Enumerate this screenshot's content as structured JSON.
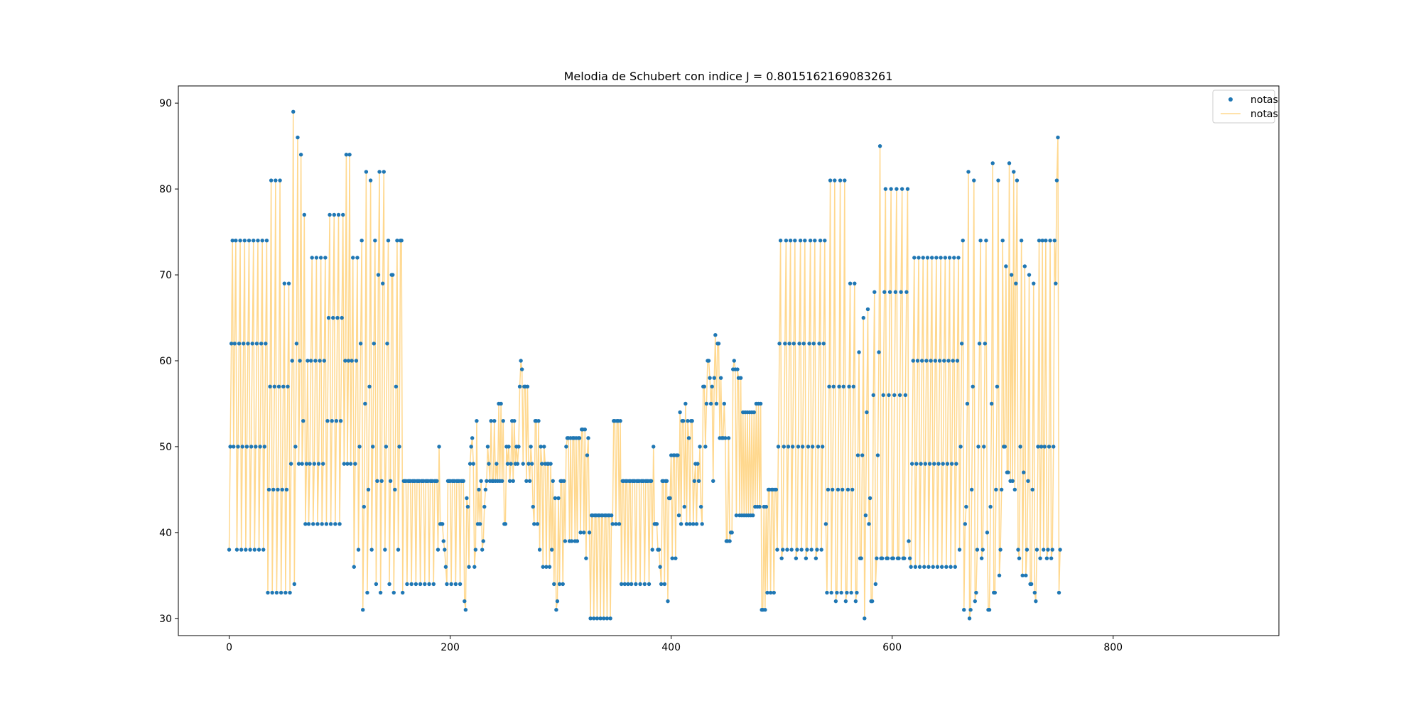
{
  "chart_data": {
    "type": "line",
    "title": "Melodia de Schubert con indice J = 0.8015162169083261",
    "xlabel": "",
    "ylabel": "",
    "xlim": [
      -46,
      950
    ],
    "ylim": [
      28,
      92
    ],
    "xticks": [
      0,
      200,
      400,
      600,
      800
    ],
    "yticks": [
      30,
      40,
      50,
      60,
      70,
      80,
      90
    ],
    "grid": false,
    "legend_position": "top-right",
    "series": [
      {
        "name": "notas",
        "style": "markers",
        "color": "#1f77b4"
      },
      {
        "name": "notas",
        "style": "line",
        "color": "#ffd88e"
      }
    ],
    "notes": [
      38,
      50,
      62,
      74,
      50,
      62,
      74,
      38,
      50,
      62,
      74,
      38,
      50,
      62,
      74,
      38,
      50,
      62,
      74,
      38,
      50,
      62,
      74,
      38,
      50,
      62,
      74,
      38,
      50,
      62,
      74,
      38,
      50,
      62,
      74,
      33,
      45,
      57,
      81,
      33,
      45,
      57,
      81,
      33,
      45,
      57,
      81,
      33,
      45,
      57,
      69,
      33,
      45,
      57,
      69,
      33,
      48,
      60,
      89,
      34,
      50,
      62,
      86,
      48,
      60,
      84,
      48,
      53,
      77,
      41,
      48,
      60,
      41,
      48,
      60,
      72,
      41,
      48,
      60,
      72,
      41,
      48,
      60,
      72,
      41,
      48,
      60,
      72,
      41,
      53,
      65,
      77,
      41,
      53,
      65,
      77,
      41,
      53,
      65,
      77,
      41,
      53,
      65,
      77,
      48,
      60,
      84,
      48,
      60,
      84,
      48,
      60,
      72,
      36,
      48,
      60,
      72,
      38,
      50,
      62,
      74,
      31,
      43,
      55,
      82,
      33,
      45,
      57,
      81,
      38,
      50,
      62,
      74,
      34,
      46,
      70,
      82,
      33,
      46,
      69,
      82,
      38,
      50,
      62,
      74,
      34,
      46,
      70,
      70,
      33,
      45,
      57,
      74,
      38,
      50,
      74,
      74,
      33,
      46,
      46,
      46,
      34,
      46,
      46,
      46,
      34,
      46,
      46,
      46,
      34,
      46,
      46,
      46,
      34,
      46,
      46,
      46,
      34,
      46,
      46,
      46,
      34,
      46,
      46,
      46,
      34,
      46,
      46,
      46,
      38,
      50,
      41,
      41,
      41,
      39,
      38,
      36,
      34,
      46,
      46,
      46,
      34,
      46,
      46,
      46,
      34,
      46,
      46,
      46,
      34,
      46,
      46,
      46,
      32,
      31,
      44,
      43,
      36,
      48,
      50,
      51,
      48,
      36,
      38,
      53,
      41,
      45,
      41,
      46,
      38,
      39,
      43,
      45,
      46,
      50,
      48,
      46,
      53,
      46,
      46,
      53,
      46,
      48,
      46,
      55,
      46,
      55,
      46,
      53,
      41,
      41,
      50,
      48,
      50,
      46,
      48,
      53,
      46,
      53,
      48,
      50,
      48,
      50,
      57,
      60,
      59,
      48,
      57,
      57,
      46,
      57,
      48,
      46,
      50,
      48,
      43,
      41,
      53,
      53,
      41,
      53,
      38,
      50,
      48,
      36,
      50,
      48,
      36,
      48,
      48,
      36,
      48,
      38,
      46,
      34,
      44,
      31,
      32,
      44,
      34,
      46,
      46,
      34,
      46,
      39,
      50,
      51,
      51,
      39,
      51,
      39,
      51,
      51,
      39,
      51,
      39,
      51,
      51,
      40,
      52,
      52,
      40,
      52,
      37,
      49,
      51,
      40,
      30,
      42,
      42,
      30,
      42,
      42,
      30,
      42,
      42,
      30,
      42,
      42,
      30,
      42,
      42,
      30,
      42,
      42,
      30,
      42,
      41,
      53,
      53,
      41,
      53,
      53,
      41,
      53,
      34,
      46,
      46,
      34,
      46,
      46,
      34,
      46,
      46,
      34,
      46,
      46,
      46,
      34,
      46,
      46,
      46,
      34,
      46,
      46,
      46,
      34,
      46,
      46,
      46,
      34,
      46,
      46,
      38,
      50,
      41,
      41,
      41,
      38,
      38,
      36,
      34,
      46,
      46,
      34,
      46,
      46,
      32,
      44,
      44,
      49,
      37,
      49,
      49,
      37,
      49,
      49,
      42,
      54,
      41,
      53,
      53,
      43,
      55,
      41,
      53,
      51,
      41,
      53,
      53,
      41,
      46,
      48,
      41,
      48,
      46,
      50,
      43,
      41,
      57,
      57,
      50,
      55,
      60,
      60,
      58,
      55,
      57,
      46,
      58,
      63,
      55,
      62,
      62,
      51,
      58,
      51,
      51,
      55,
      51,
      39,
      39,
      51,
      39,
      40,
      40,
      59,
      60,
      59,
      42,
      59,
      58,
      42,
      58,
      42,
      54,
      42,
      54,
      42,
      54,
      42,
      54,
      42,
      54,
      42,
      54,
      43,
      55,
      43,
      55,
      43,
      55,
      31,
      31,
      43,
      31,
      43,
      33,
      45,
      45,
      33,
      45,
      45,
      33,
      45,
      45,
      38,
      50,
      62,
      74,
      37,
      38,
      50,
      62,
      74,
      38,
      50,
      62,
      74,
      38,
      50,
      62,
      74,
      37,
      38,
      50,
      62,
      74,
      38,
      50,
      62,
      74,
      37,
      38,
      50,
      62,
      74,
      38,
      50,
      62,
      74,
      37,
      38,
      50,
      62,
      74,
      38,
      50,
      62,
      74,
      41,
      33,
      45,
      57,
      81,
      33,
      45,
      57,
      81,
      32,
      33,
      45,
      57,
      81,
      33,
      45,
      57,
      81,
      32,
      33,
      45,
      57,
      69,
      33,
      45,
      57,
      69,
      32,
      33,
      49,
      61,
      37,
      37,
      49,
      65,
      30,
      42,
      54,
      66,
      41,
      44,
      32,
      32,
      56,
      68,
      34,
      37,
      49,
      61,
      85,
      37,
      37,
      56,
      68,
      80,
      37,
      37,
      56,
      68,
      80,
      37,
      37,
      56,
      68,
      80,
      37,
      37,
      56,
      68,
      80,
      37,
      37,
      56,
      68,
      80,
      39,
      37,
      36,
      48,
      60,
      72,
      36,
      48,
      60,
      72,
      36,
      48,
      60,
      72,
      36,
      48,
      60,
      72,
      36,
      48,
      60,
      72,
      36,
      48,
      60,
      72,
      36,
      48,
      60,
      72,
      36,
      48,
      60,
      72,
      36,
      48,
      60,
      72,
      36,
      48,
      60,
      72,
      36,
      48,
      60,
      72,
      38,
      50,
      62,
      74,
      31,
      41,
      43,
      55,
      82,
      30,
      31,
      45,
      57,
      81,
      32,
      33,
      38,
      50,
      62,
      74,
      37,
      38,
      50,
      62,
      74,
      40,
      31,
      31,
      43,
      55,
      83,
      33,
      33,
      45,
      57,
      81,
      35,
      38,
      45,
      74,
      50,
      50,
      71,
      47,
      47,
      83,
      46,
      70,
      46,
      82,
      45,
      69,
      81,
      38,
      37,
      50,
      74,
      35,
      47,
      71,
      35,
      38,
      46,
      70,
      34,
      34,
      45,
      69,
      33,
      32,
      38,
      50,
      74,
      37,
      50,
      74,
      38,
      50,
      74,
      37,
      38,
      50,
      74,
      37,
      38,
      50,
      74,
      69,
      81,
      86,
      33,
      38
    ]
  }
}
